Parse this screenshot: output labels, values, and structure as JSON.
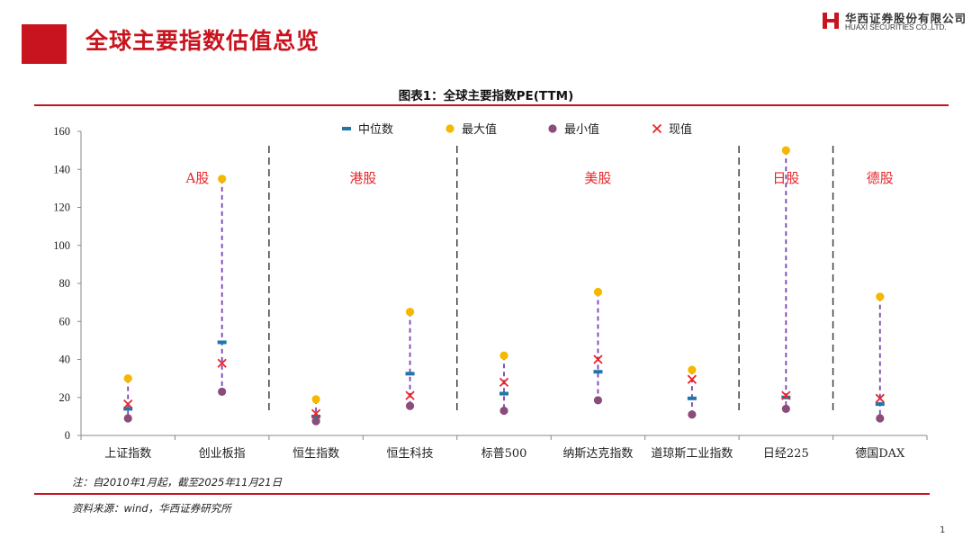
{
  "header": {
    "title": "全球主要指数估值总览",
    "brand_cn": "华西证券股份有限公司",
    "brand_en": "HUAXI SECURITIES CO.,LTD.",
    "brand_color": "#c8141e"
  },
  "figure": {
    "caption": "图表1：全球主要指数PE(TTM)",
    "note": "注：自2010年1月起，截至2025年11月21日",
    "source": "资料来源：wind，华西证券研究所",
    "page_number": "1"
  },
  "chart_data": {
    "type": "scatter",
    "title": "图表1：全球主要指数PE(TTM)",
    "categories": [
      "上证指数",
      "创业板指",
      "恒生指数",
      "恒生科技",
      "标普500",
      "纳斯达克指数",
      "道琼斯工业指数",
      "日经225",
      "德国DAX"
    ],
    "ylim": [
      0,
      160
    ],
    "yticks": [
      0,
      20,
      40,
      60,
      80,
      100,
      120,
      140,
      160
    ],
    "grid": false,
    "legend_position": "top",
    "series": [
      {
        "name": "中位数",
        "marker": "dash",
        "color": "#1f77a8",
        "values": [
          14,
          49,
          10,
          32.5,
          22,
          33.5,
          19.5,
          20,
          16.5
        ]
      },
      {
        "name": "最大值",
        "marker": "circle",
        "color": "#f5b800",
        "values": [
          30,
          135,
          19,
          65,
          42,
          75.5,
          34.5,
          150,
          73
        ]
      },
      {
        "name": "最小值",
        "marker": "circle",
        "color": "#8b4c7c",
        "values": [
          9,
          23,
          7.5,
          15.5,
          13,
          18.5,
          11,
          14,
          9
        ]
      },
      {
        "name": "现值",
        "marker": "x",
        "color": "#e8262c",
        "values": [
          16.5,
          38,
          11.5,
          21,
          28,
          40,
          29.5,
          21,
          19.5
        ]
      }
    ],
    "range_line_color": "#7b3fb5",
    "groups": [
      {
        "label": "A股",
        "from": 0,
        "to": 1
      },
      {
        "label": "港股",
        "from": 2,
        "to": 3
      },
      {
        "label": "美股",
        "from": 4,
        "to": 6
      },
      {
        "label": "日股",
        "from": 7,
        "to": 7
      },
      {
        "label": "德股",
        "from": 8,
        "to": 8
      }
    ],
    "group_label_color": "#e8262c"
  }
}
